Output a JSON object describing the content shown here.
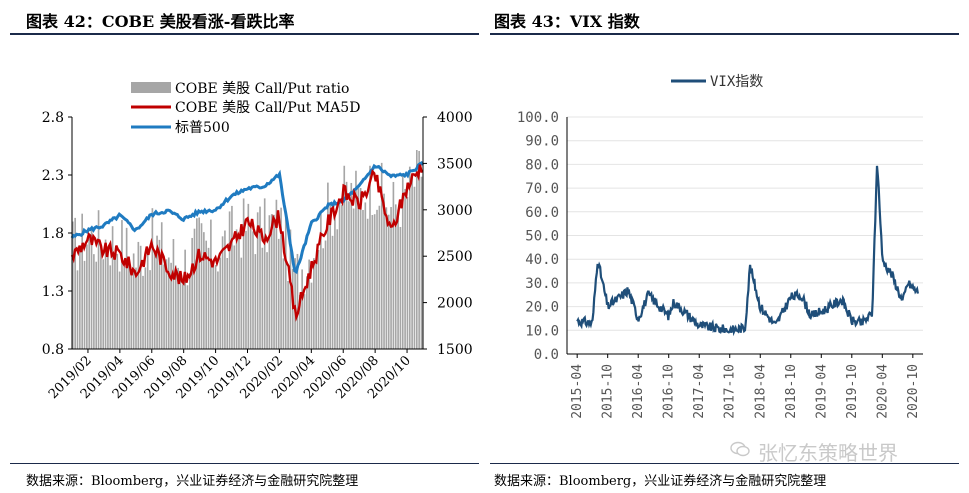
{
  "left": {
    "title": "图表 42：COBE 美股看涨-看跌比率",
    "source": "数据来源：Bloomberg，兴业证券经济与金融研究院整理",
    "legend": {
      "bars": "COBE 美股 Call/Put ratio",
      "ma": "COBE 美股 Call/Put MA5D",
      "spx": "标普500"
    },
    "colors": {
      "bars": "#a6a6a6",
      "ma": "#c00000",
      "spx": "#1f7bc1"
    },
    "y_left_ticks": [
      "2.8",
      "2.3",
      "1.8",
      "1.3",
      "0.8"
    ],
    "y_right_ticks": [
      "4000",
      "3500",
      "3000",
      "2500",
      "2000",
      "1500"
    ],
    "x_ticks": [
      "2019/02",
      "2019/04",
      "2019/06",
      "2019/08",
      "2019/10",
      "2019/12",
      "2020/02",
      "2020/04",
      "2020/06",
      "2020/08",
      "2020/10"
    ]
  },
  "right": {
    "title": "图表 43：VIX 指数",
    "source": "数据来源：Bloomberg，兴业证券经济与金融研究院整理",
    "legend": "VIX指数",
    "color": "#1f4e79",
    "y_ticks": [
      "100.0",
      "90.0",
      "80.0",
      "70.0",
      "60.0",
      "50.0",
      "40.0",
      "30.0",
      "20.0",
      "10.0",
      "0.0"
    ],
    "x_ticks": [
      "2015-04",
      "2015-10",
      "2016-04",
      "2016-10",
      "2017-04",
      "2017-10",
      "2018-04",
      "2018-10",
      "2019-04",
      "2019-10",
      "2020-04",
      "2020-10"
    ]
  },
  "watermark": "张忆东策略世界",
  "chart_data": [
    {
      "type": "bar",
      "title": "COBE 美股看涨-看跌比率",
      "ylim_left": [
        0.8,
        2.8
      ],
      "ylim_right": [
        1500,
        4000
      ],
      "x_range": [
        "2019/01",
        "2020/11"
      ],
      "series": [
        {
          "name": "COBE 美股 Call/Put ratio",
          "axis": "left",
          "x": [
            "2019/01",
            "2019/02",
            "2019/03",
            "2019/04",
            "2019/05",
            "2019/06",
            "2019/07",
            "2019/08",
            "2019/09",
            "2019/10",
            "2019/11",
            "2019/12",
            "2020/01",
            "2020/02",
            "2020/03",
            "2020/04",
            "2020/05",
            "2020/06",
            "2020/07",
            "2020/08",
            "2020/09",
            "2020/10",
            "2020/11"
          ],
          "values": [
            1.65,
            1.75,
            1.72,
            1.7,
            1.55,
            1.72,
            1.6,
            1.5,
            1.7,
            1.6,
            1.75,
            1.85,
            1.8,
            1.9,
            1.4,
            1.6,
            1.95,
            2.1,
            2.1,
            2.2,
            2.0,
            2.1,
            2.35
          ]
        },
        {
          "name": "COBE 美股 Call/Put MA5D",
          "axis": "left",
          "x": [
            "2019/01",
            "2019/02",
            "2019/03",
            "2019/04",
            "2019/05",
            "2019/06",
            "2019/07",
            "2019/08",
            "2019/09",
            "2019/10",
            "2019/11",
            "2019/12",
            "2020/01",
            "2020/02",
            "2020/03",
            "2020/04",
            "2020/05",
            "2020/06",
            "2020/07",
            "2020/08",
            "2020/09",
            "2020/10",
            "2020/11"
          ],
          "values": [
            1.6,
            1.75,
            1.65,
            1.62,
            1.45,
            1.7,
            1.5,
            1.38,
            1.62,
            1.55,
            1.7,
            1.9,
            1.75,
            1.95,
            1.08,
            1.5,
            1.88,
            2.15,
            2.05,
            2.3,
            1.8,
            2.2,
            2.4
          ]
        },
        {
          "name": "标普500",
          "axis": "right",
          "x": [
            "2019/01",
            "2019/02",
            "2019/03",
            "2019/04",
            "2019/05",
            "2019/06",
            "2019/07",
            "2019/08",
            "2019/09",
            "2019/10",
            "2019/11",
            "2019/12",
            "2020/01",
            "2020/02",
            "2020/03",
            "2020/04",
            "2020/05",
            "2020/06",
            "2020/07",
            "2020/08",
            "2020/09",
            "2020/10",
            "2020/11"
          ],
          "values": [
            2700,
            2780,
            2830,
            2940,
            2780,
            2950,
            2990,
            2900,
            2980,
            3000,
            3150,
            3230,
            3250,
            3380,
            2300,
            2850,
            3040,
            3100,
            3250,
            3480,
            3360,
            3380,
            3500
          ]
        }
      ]
    },
    {
      "type": "line",
      "title": "VIX 指数",
      "ylim": [
        0,
        100
      ],
      "series": [
        {
          "name": "VIX指数",
          "x": [
            "2015-04",
            "2015-07",
            "2015-08",
            "2015-10",
            "2016-01",
            "2016-02",
            "2016-04",
            "2016-06",
            "2016-10",
            "2016-11",
            "2017-04",
            "2017-10",
            "2018-01",
            "2018-02",
            "2018-04",
            "2018-07",
            "2018-10",
            "2018-12",
            "2019-02",
            "2019-05",
            "2019-08",
            "2019-10",
            "2019-12",
            "2020-02",
            "2020-03",
            "2020-04",
            "2020-06",
            "2020-08",
            "2020-09",
            "2020-10",
            "2020-11"
          ],
          "values": [
            14,
            13,
            40,
            20,
            25,
            27,
            15,
            25,
            16,
            22,
            12,
            10,
            11,
            37,
            20,
            12,
            24,
            25,
            16,
            19,
            23,
            14,
            13,
            17,
            82,
            40,
            33,
            22,
            30,
            28,
            26
          ]
        }
      ]
    }
  ]
}
